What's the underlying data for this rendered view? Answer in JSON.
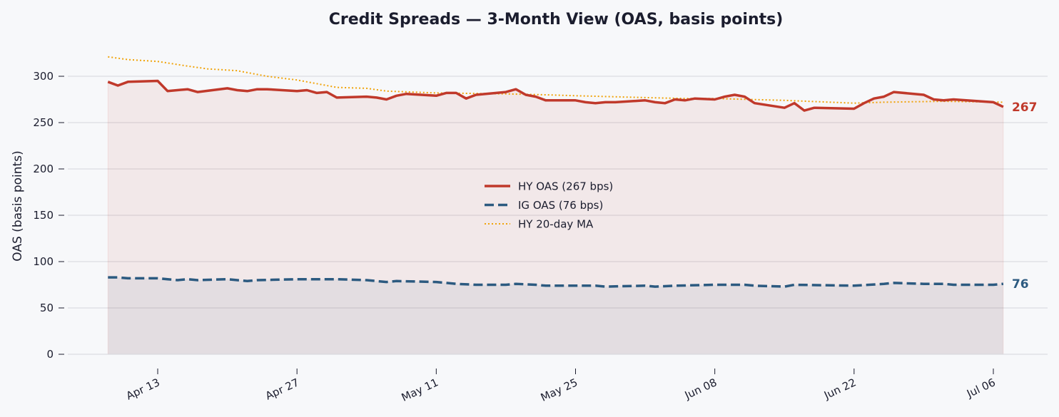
{
  "chart_data": {
    "type": "line",
    "title": "Credit Spreads — 3-Month View (OAS, basis points)",
    "xlabel": "",
    "ylabel": "OAS (basis points)",
    "ylim": [
      0,
      330
    ],
    "yticks": [
      0,
      50,
      100,
      150,
      200,
      250,
      300
    ],
    "xticks": [
      {
        "date": "2024-04-13",
        "label": "Apr 13"
      },
      {
        "date": "2024-04-27",
        "label": "Apr 27"
      },
      {
        "date": "2024-05-11",
        "label": "May 11"
      },
      {
        "date": "2024-05-25",
        "label": "May 25"
      },
      {
        "date": "2024-06-08",
        "label": "Jun 08"
      },
      {
        "date": "2024-06-22",
        "label": "Jun 22"
      },
      {
        "date": "2024-07-06",
        "label": "Jul 06"
      }
    ],
    "grid": "horizontal",
    "legend_position": "center",
    "colors": {
      "hy": "#c0392b",
      "ig": "#2c5a80",
      "ma": "#f0a30a"
    },
    "series": [
      {
        "key": "hy",
        "name": "HY OAS  (267 bps)",
        "style": "solid",
        "end_label": "267",
        "points": [
          [
            "2024-04-08",
            294
          ],
          [
            "2024-04-09",
            290
          ],
          [
            "2024-04-10",
            294
          ],
          [
            "2024-04-13",
            295
          ],
          [
            "2024-04-14",
            284
          ],
          [
            "2024-04-16",
            286
          ],
          [
            "2024-04-17",
            283
          ],
          [
            "2024-04-20",
            287
          ],
          [
            "2024-04-21",
            285
          ],
          [
            "2024-04-22",
            284
          ],
          [
            "2024-04-23",
            286
          ],
          [
            "2024-04-24",
            286
          ],
          [
            "2024-04-27",
            284
          ],
          [
            "2024-04-28",
            285
          ],
          [
            "2024-04-29",
            282
          ],
          [
            "2024-04-30",
            283
          ],
          [
            "2024-05-01",
            277
          ],
          [
            "2024-05-04",
            278
          ],
          [
            "2024-05-05",
            277
          ],
          [
            "2024-05-06",
            275
          ],
          [
            "2024-05-07",
            279
          ],
          [
            "2024-05-08",
            281
          ],
          [
            "2024-05-11",
            279
          ],
          [
            "2024-05-12",
            282
          ],
          [
            "2024-05-13",
            282
          ],
          [
            "2024-05-14",
            276
          ],
          [
            "2024-05-15",
            280
          ],
          [
            "2024-05-18",
            283
          ],
          [
            "2024-05-19",
            286
          ],
          [
            "2024-05-20",
            280
          ],
          [
            "2024-05-21",
            278
          ],
          [
            "2024-05-22",
            274
          ],
          [
            "2024-05-25",
            274
          ],
          [
            "2024-05-26",
            272
          ],
          [
            "2024-05-27",
            271
          ],
          [
            "2024-05-28",
            272
          ],
          [
            "2024-05-29",
            272
          ],
          [
            "2024-06-01",
            274
          ],
          [
            "2024-06-02",
            272
          ],
          [
            "2024-06-03",
            271
          ],
          [
            "2024-06-04",
            275
          ],
          [
            "2024-06-05",
            274
          ],
          [
            "2024-06-06",
            276
          ],
          [
            "2024-06-08",
            275
          ],
          [
            "2024-06-09",
            278
          ],
          [
            "2024-06-10",
            280
          ],
          [
            "2024-06-11",
            278
          ],
          [
            "2024-06-12",
            271
          ],
          [
            "2024-06-15",
            266
          ],
          [
            "2024-06-16",
            271
          ],
          [
            "2024-06-17",
            263
          ],
          [
            "2024-06-18",
            266
          ],
          [
            "2024-06-22",
            265
          ],
          [
            "2024-06-23",
            271
          ],
          [
            "2024-06-24",
            276
          ],
          [
            "2024-06-25",
            278
          ],
          [
            "2024-06-26",
            283
          ],
          [
            "2024-06-29",
            280
          ],
          [
            "2024-06-30",
            275
          ],
          [
            "2024-07-01",
            274
          ],
          [
            "2024-07-02",
            275
          ],
          [
            "2024-07-06",
            272
          ],
          [
            "2024-07-07",
            267
          ]
        ]
      },
      {
        "key": "ig",
        "name": "IG OAS  (76 bps)",
        "style": "dashed",
        "end_label": "76",
        "points": [
          [
            "2024-04-08",
            83
          ],
          [
            "2024-04-09",
            83
          ],
          [
            "2024-04-10",
            82
          ],
          [
            "2024-04-13",
            82
          ],
          [
            "2024-04-14",
            81
          ],
          [
            "2024-04-15",
            80
          ],
          [
            "2024-04-16",
            81
          ],
          [
            "2024-04-17",
            80
          ],
          [
            "2024-04-20",
            81
          ],
          [
            "2024-04-21",
            80
          ],
          [
            "2024-04-22",
            79
          ],
          [
            "2024-04-23",
            80
          ],
          [
            "2024-04-27",
            81
          ],
          [
            "2024-04-30",
            81
          ],
          [
            "2024-05-01",
            81
          ],
          [
            "2024-05-04",
            80
          ],
          [
            "2024-05-06",
            78
          ],
          [
            "2024-05-07",
            79
          ],
          [
            "2024-05-11",
            78
          ],
          [
            "2024-05-12",
            77
          ],
          [
            "2024-05-13",
            76
          ],
          [
            "2024-05-15",
            75
          ],
          [
            "2024-05-18",
            75
          ],
          [
            "2024-05-19",
            76
          ],
          [
            "2024-05-21",
            75
          ],
          [
            "2024-05-22",
            74
          ],
          [
            "2024-05-25",
            74
          ],
          [
            "2024-05-27",
            74
          ],
          [
            "2024-05-28",
            73
          ],
          [
            "2024-06-01",
            74
          ],
          [
            "2024-06-02",
            73
          ],
          [
            "2024-06-04",
            74
          ],
          [
            "2024-06-08",
            75
          ],
          [
            "2024-06-11",
            75
          ],
          [
            "2024-06-12",
            74
          ],
          [
            "2024-06-15",
            73
          ],
          [
            "2024-06-16",
            75
          ],
          [
            "2024-06-22",
            74
          ],
          [
            "2024-06-25",
            76
          ],
          [
            "2024-06-26",
            77
          ],
          [
            "2024-06-29",
            76
          ],
          [
            "2024-07-01",
            76
          ],
          [
            "2024-07-02",
            75
          ],
          [
            "2024-07-06",
            75
          ],
          [
            "2024-07-07",
            76
          ]
        ]
      },
      {
        "key": "ma",
        "name": "HY 20-day MA",
        "style": "dotted",
        "points": [
          [
            "2024-04-08",
            321
          ],
          [
            "2024-04-10",
            318
          ],
          [
            "2024-04-13",
            316
          ],
          [
            "2024-04-16",
            311
          ],
          [
            "2024-04-18",
            308
          ],
          [
            "2024-04-21",
            306
          ],
          [
            "2024-04-24",
            300
          ],
          [
            "2024-04-27",
            296
          ],
          [
            "2024-04-30",
            290
          ],
          [
            "2024-05-01",
            288
          ],
          [
            "2024-05-04",
            287
          ],
          [
            "2024-05-06",
            284
          ],
          [
            "2024-05-11",
            282
          ],
          [
            "2024-05-18",
            281
          ],
          [
            "2024-05-22",
            280
          ],
          [
            "2024-05-25",
            279
          ],
          [
            "2024-06-01",
            277
          ],
          [
            "2024-06-05",
            276
          ],
          [
            "2024-06-08",
            276
          ],
          [
            "2024-06-15",
            274
          ],
          [
            "2024-06-22",
            271
          ],
          [
            "2024-06-25",
            272
          ],
          [
            "2024-07-01",
            273
          ],
          [
            "2024-07-07",
            272
          ]
        ]
      }
    ]
  }
}
